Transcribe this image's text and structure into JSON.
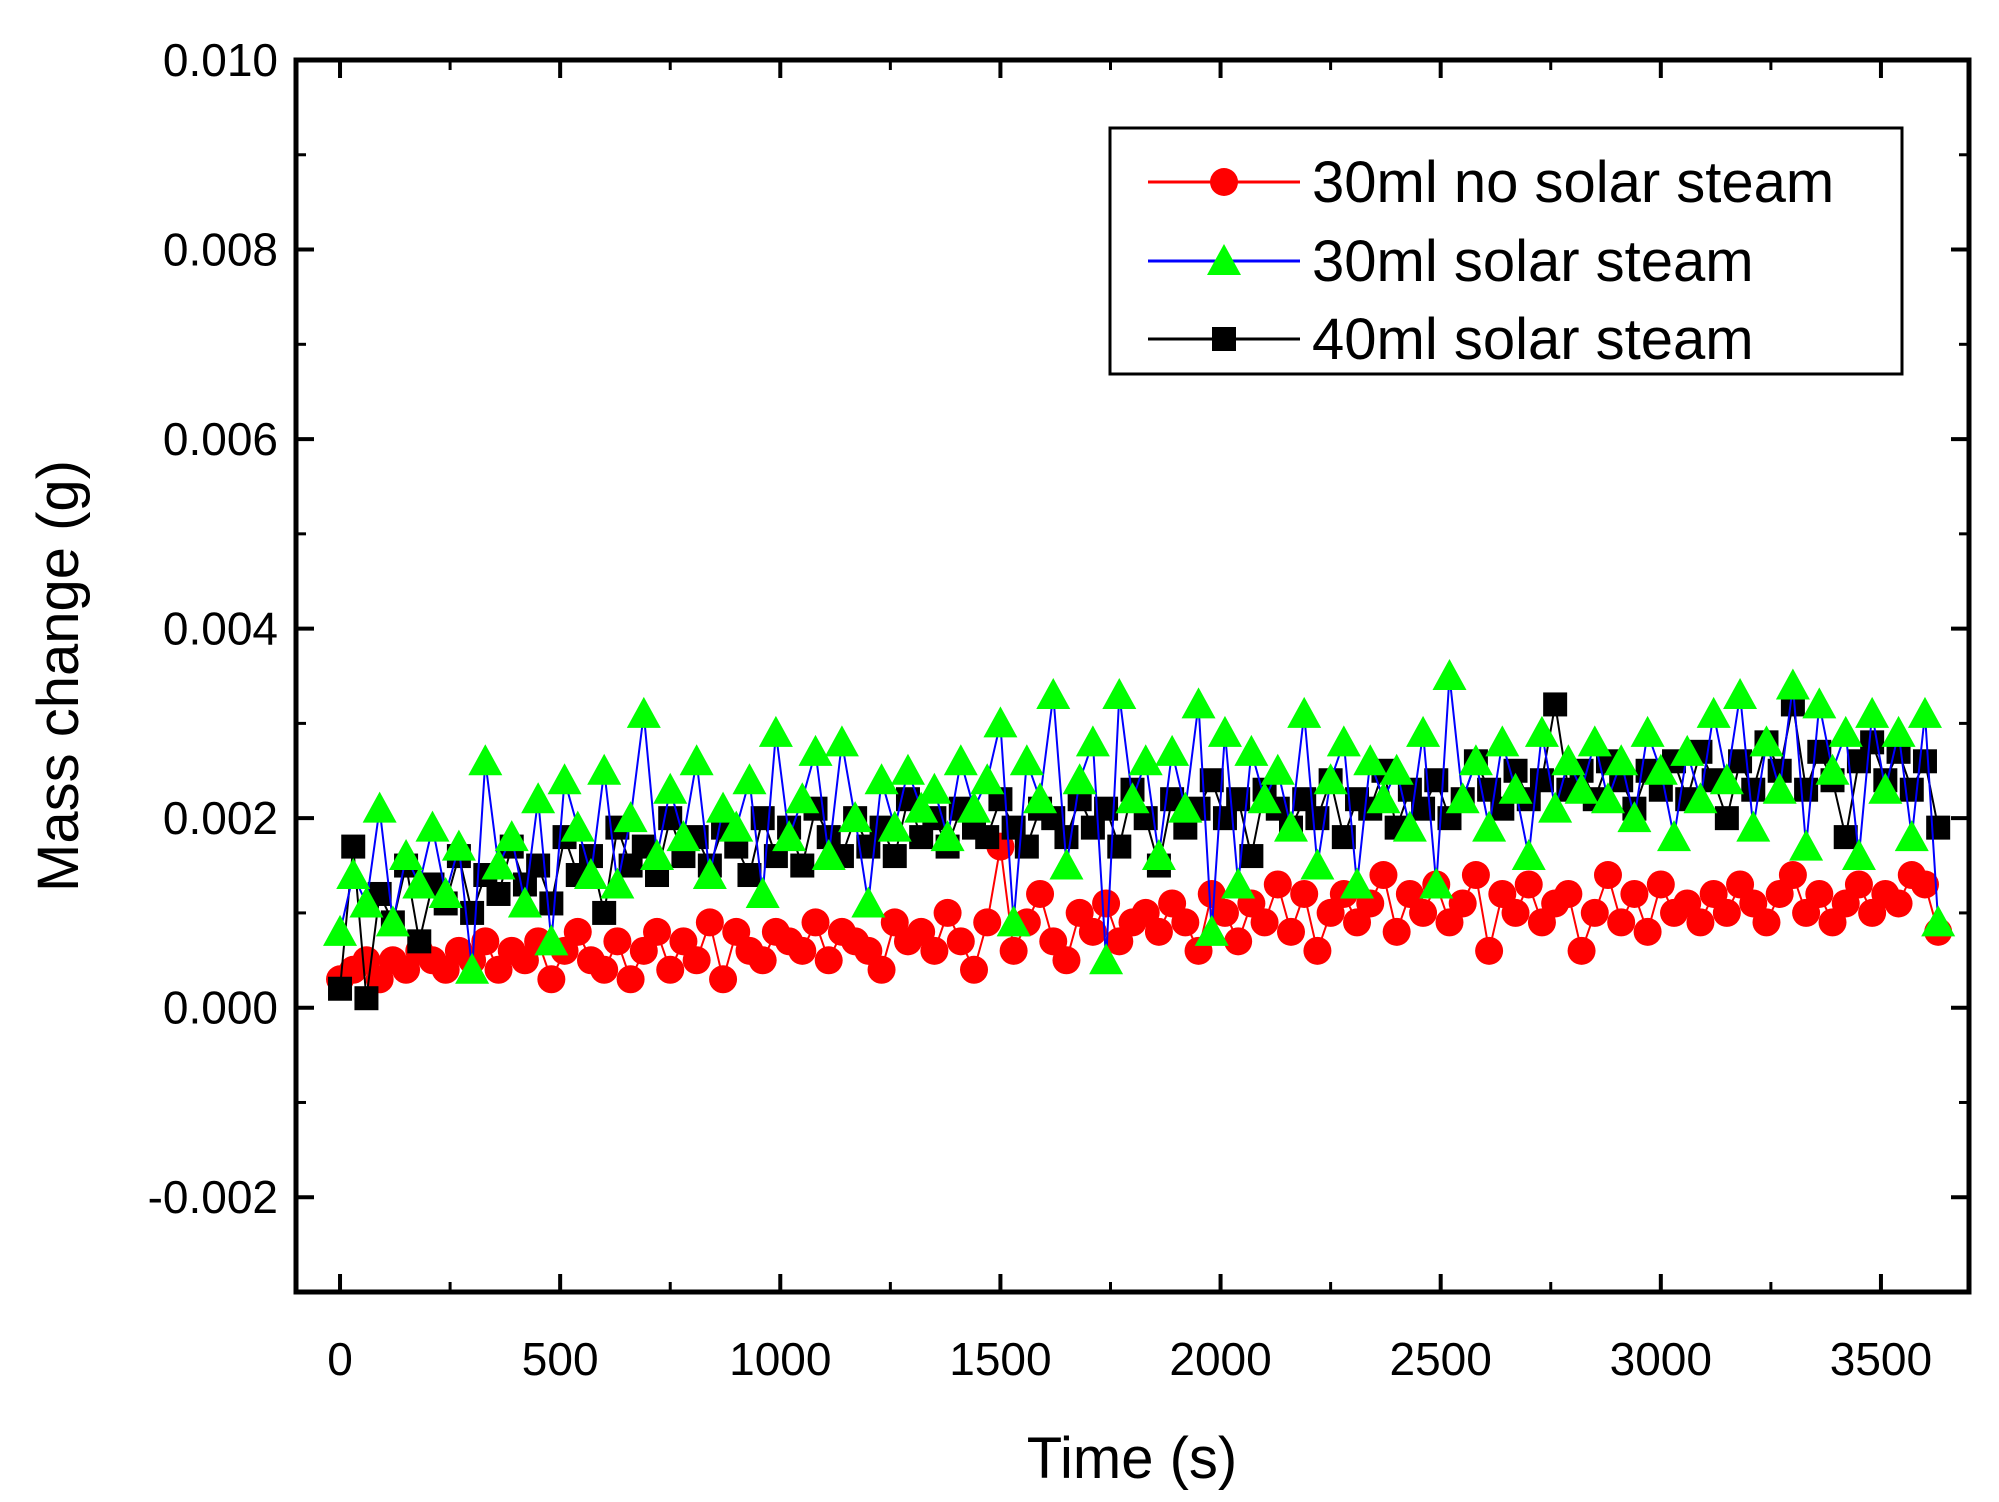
{
  "chart_data": {
    "type": "scatter",
    "title": "",
    "xlabel": "Time (s)",
    "ylabel": "Mass change (g)",
    "xlim": [
      -100,
      3700
    ],
    "ylim": [
      -0.003,
      0.01
    ],
    "xticks": [
      0,
      500,
      1000,
      1500,
      2000,
      2500,
      3000,
      3500
    ],
    "xtick_labels": [
      "0",
      "500",
      "1000",
      "1500",
      "2000",
      "2500",
      "3000",
      "3500"
    ],
    "yticks": [
      -0.002,
      0.0,
      0.002,
      0.004,
      0.006,
      0.008,
      0.01
    ],
    "ytick_labels": [
      "-0.002",
      "0.000",
      "0.002",
      "0.004",
      "0.006",
      "0.008",
      "0.010"
    ],
    "grid": false,
    "legend_position": "top-right",
    "series": [
      {
        "name": "30ml no solar steam",
        "marker": "circle",
        "marker_color": "#ff0000",
        "line_color": "#ff0000",
        "x": [
          0,
          30,
          60,
          90,
          120,
          150,
          180,
          210,
          240,
          270,
          300,
          330,
          360,
          390,
          420,
          450,
          480,
          510,
          540,
          570,
          600,
          630,
          660,
          690,
          720,
          750,
          780,
          810,
          840,
          870,
          900,
          930,
          960,
          990,
          1020,
          1050,
          1080,
          1110,
          1140,
          1170,
          1200,
          1230,
          1260,
          1290,
          1320,
          1350,
          1380,
          1410,
          1440,
          1470,
          1500,
          1530,
          1560,
          1590,
          1620,
          1650,
          1680,
          1710,
          1740,
          1770,
          1800,
          1830,
          1860,
          1890,
          1920,
          1950,
          1980,
          2010,
          2040,
          2070,
          2100,
          2130,
          2160,
          2190,
          2220,
          2250,
          2280,
          2310,
          2340,
          2370,
          2400,
          2430,
          2460,
          2490,
          2520,
          2550,
          2580,
          2610,
          2640,
          2670,
          2700,
          2730,
          2760,
          2790,
          2820,
          2850,
          2880,
          2910,
          2940,
          2970,
          3000,
          3030,
          3060,
          3090,
          3120,
          3150,
          3180,
          3210,
          3240,
          3270,
          3300,
          3330,
          3360,
          3390,
          3420,
          3450,
          3480,
          3510,
          3540,
          3570,
          3600,
          3630
        ],
        "y": [
          0.0003,
          0.0004,
          0.0005,
          0.0003,
          0.0005,
          0.0004,
          0.0006,
          0.0005,
          0.0004,
          0.0006,
          0.0005,
          0.0007,
          0.0004,
          0.0006,
          0.0005,
          0.0007,
          0.0003,
          0.0006,
          0.0008,
          0.0005,
          0.0004,
          0.0007,
          0.0003,
          0.0006,
          0.0008,
          0.0004,
          0.0007,
          0.0005,
          0.0009,
          0.0003,
          0.0008,
          0.0006,
          0.0005,
          0.0008,
          0.0007,
          0.0006,
          0.0009,
          0.0005,
          0.0008,
          0.0007,
          0.0006,
          0.0004,
          0.0009,
          0.0007,
          0.0008,
          0.0006,
          0.001,
          0.0007,
          0.0004,
          0.0009,
          0.0017,
          0.0006,
          0.0009,
          0.0012,
          0.0007,
          0.0005,
          0.001,
          0.0008,
          0.0011,
          0.0007,
          0.0009,
          0.001,
          0.0008,
          0.0011,
          0.0009,
          0.0006,
          0.0012,
          0.001,
          0.0007,
          0.0011,
          0.0009,
          0.0013,
          0.0008,
          0.0012,
          0.0006,
          0.001,
          0.0012,
          0.0009,
          0.0011,
          0.0014,
          0.0008,
          0.0012,
          0.001,
          0.0013,
          0.0009,
          0.0011,
          0.0014,
          0.0006,
          0.0012,
          0.001,
          0.0013,
          0.0009,
          0.0011,
          0.0012,
          0.0006,
          0.001,
          0.0014,
          0.0009,
          0.0012,
          0.0008,
          0.0013,
          0.001,
          0.0011,
          0.0009,
          0.0012,
          0.001,
          0.0013,
          0.0011,
          0.0009,
          0.0012,
          0.0014,
          0.001,
          0.0012,
          0.0009,
          0.0011,
          0.0013,
          0.001,
          0.0012,
          0.0011,
          0.0014,
          0.0013,
          0.0008
        ]
      },
      {
        "name": "30ml solar steam",
        "marker": "triangle",
        "marker_color": "#00ff00",
        "line_color": "#0000ff",
        "x": [
          0,
          30,
          60,
          90,
          120,
          150,
          180,
          210,
          240,
          270,
          300,
          330,
          360,
          390,
          420,
          450,
          480,
          510,
          540,
          570,
          600,
          630,
          660,
          690,
          720,
          750,
          780,
          810,
          840,
          870,
          900,
          930,
          960,
          990,
          1020,
          1050,
          1080,
          1110,
          1140,
          1170,
          1200,
          1230,
          1260,
          1290,
          1320,
          1350,
          1380,
          1410,
          1440,
          1470,
          1500,
          1530,
          1560,
          1590,
          1620,
          1650,
          1680,
          1710,
          1740,
          1770,
          1800,
          1830,
          1860,
          1890,
          1920,
          1950,
          1980,
          2010,
          2040,
          2070,
          2100,
          2130,
          2160,
          2190,
          2220,
          2250,
          2280,
          2310,
          2340,
          2370,
          2400,
          2430,
          2460,
          2490,
          2520,
          2550,
          2580,
          2610,
          2640,
          2670,
          2700,
          2730,
          2760,
          2790,
          2820,
          2850,
          2880,
          2910,
          2940,
          2970,
          3000,
          3030,
          3060,
          3090,
          3120,
          3150,
          3180,
          3210,
          3240,
          3270,
          3300,
          3330,
          3360,
          3390,
          3420,
          3450,
          3480,
          3510,
          3540,
          3570,
          3600,
          3630
        ],
        "y": [
          0.0008,
          0.0014,
          0.0011,
          0.0021,
          0.0009,
          0.0016,
          0.0013,
          0.0019,
          0.0012,
          0.0017,
          0.0004,
          0.0026,
          0.0015,
          0.0018,
          0.0011,
          0.0022,
          0.0007,
          0.0024,
          0.0019,
          0.0014,
          0.0025,
          0.0013,
          0.002,
          0.0031,
          0.0016,
          0.0023,
          0.0018,
          0.0026,
          0.0014,
          0.0021,
          0.0019,
          0.0024,
          0.0012,
          0.0029,
          0.0018,
          0.0022,
          0.0027,
          0.0016,
          0.0028,
          0.002,
          0.0011,
          0.0024,
          0.0019,
          0.0025,
          0.0021,
          0.0023,
          0.0018,
          0.0026,
          0.0021,
          0.0024,
          0.003,
          0.0009,
          0.0026,
          0.0022,
          0.0033,
          0.0015,
          0.0024,
          0.0028,
          0.0005,
          0.0033,
          0.0022,
          0.0026,
          0.0016,
          0.0027,
          0.0021,
          0.0032,
          0.0008,
          0.0029,
          0.0013,
          0.0027,
          0.0022,
          0.0025,
          0.0019,
          0.0031,
          0.0015,
          0.0024,
          0.0028,
          0.0013,
          0.0026,
          0.0022,
          0.0025,
          0.0019,
          0.0029,
          0.0013,
          0.0035,
          0.0022,
          0.0026,
          0.0019,
          0.0028,
          0.0023,
          0.0016,
          0.0029,
          0.0021,
          0.0026,
          0.0023,
          0.0028,
          0.0022,
          0.0026,
          0.002,
          0.0029,
          0.0025,
          0.0018,
          0.0027,
          0.0022,
          0.0031,
          0.0024,
          0.0033,
          0.0019,
          0.0028,
          0.0023,
          0.0034,
          0.0017,
          0.0032,
          0.0025,
          0.0029,
          0.0016,
          0.0031,
          0.0023,
          0.0029,
          0.0018,
          0.0031,
          0.0009
        ]
      },
      {
        "name": "40ml solar steam",
        "marker": "square",
        "marker_color": "#000000",
        "line_color": "#000000",
        "x": [
          0,
          30,
          60,
          90,
          120,
          150,
          180,
          210,
          240,
          270,
          300,
          330,
          360,
          390,
          420,
          450,
          480,
          510,
          540,
          570,
          600,
          630,
          660,
          690,
          720,
          750,
          780,
          810,
          840,
          870,
          900,
          930,
          960,
          990,
          1020,
          1050,
          1080,
          1110,
          1140,
          1170,
          1200,
          1230,
          1260,
          1290,
          1320,
          1350,
          1380,
          1410,
          1440,
          1470,
          1500,
          1530,
          1560,
          1590,
          1620,
          1650,
          1680,
          1710,
          1740,
          1770,
          1800,
          1830,
          1860,
          1890,
          1920,
          1950,
          1980,
          2010,
          2040,
          2070,
          2100,
          2130,
          2160,
          2190,
          2220,
          2250,
          2280,
          2310,
          2340,
          2370,
          2400,
          2430,
          2460,
          2490,
          2520,
          2550,
          2580,
          2610,
          2640,
          2670,
          2700,
          2730,
          2760,
          2790,
          2820,
          2850,
          2880,
          2910,
          2940,
          2970,
          3000,
          3030,
          3060,
          3090,
          3120,
          3150,
          3180,
          3210,
          3240,
          3270,
          3300,
          3330,
          3360,
          3390,
          3420,
          3450,
          3480,
          3510,
          3540,
          3570,
          3600,
          3630
        ],
        "y": [
          0.0002,
          0.0017,
          0.0001,
          0.0012,
          0.0009,
          0.0015,
          0.0007,
          0.0013,
          0.0011,
          0.0016,
          0.001,
          0.0014,
          0.0012,
          0.0017,
          0.0013,
          0.0015,
          0.0011,
          0.0018,
          0.0014,
          0.0016,
          0.001,
          0.0019,
          0.0015,
          0.0017,
          0.0014,
          0.002,
          0.0016,
          0.0018,
          0.0015,
          0.0019,
          0.0017,
          0.0014,
          0.002,
          0.0016,
          0.0019,
          0.0015,
          0.0021,
          0.0018,
          0.0016,
          0.002,
          0.0017,
          0.0019,
          0.0016,
          0.0022,
          0.0018,
          0.002,
          0.0017,
          0.0021,
          0.0019,
          0.0018,
          0.0022,
          0.0019,
          0.0017,
          0.0021,
          0.002,
          0.0018,
          0.0022,
          0.0019,
          0.0021,
          0.0017,
          0.0023,
          0.002,
          0.0015,
          0.0022,
          0.0019,
          0.0021,
          0.0024,
          0.002,
          0.0022,
          0.0016,
          0.0023,
          0.0021,
          0.0019,
          0.0022,
          0.002,
          0.0024,
          0.0018,
          0.0022,
          0.0021,
          0.0025,
          0.0019,
          0.0023,
          0.0021,
          0.0024,
          0.002,
          0.0022,
          0.0026,
          0.0023,
          0.0021,
          0.0025,
          0.0022,
          0.0024,
          0.0032,
          0.0023,
          0.0025,
          0.0022,
          0.0026,
          0.0024,
          0.0021,
          0.0025,
          0.0023,
          0.0026,
          0.0022,
          0.0027,
          0.0024,
          0.002,
          0.0026,
          0.0023,
          0.0028,
          0.0025,
          0.0032,
          0.0023,
          0.0027,
          0.0024,
          0.0018,
          0.0026,
          0.0028,
          0.0024,
          0.0027,
          0.0023,
          0.0026,
          0.0019
        ]
      }
    ]
  }
}
